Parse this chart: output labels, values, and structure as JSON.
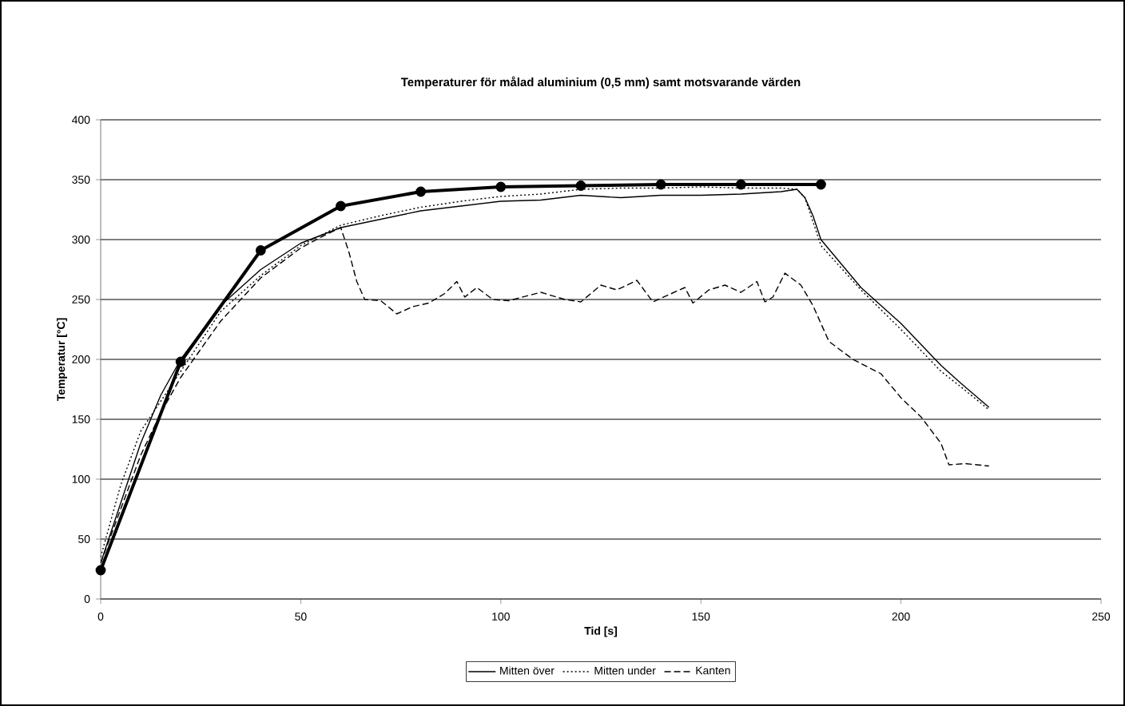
{
  "chart_data": {
    "type": "line",
    "title": "Temperaturer för målad aluminium (0,5 mm) samt motsvarande värden",
    "xlabel": "Tid [s]",
    "ylabel": "Temperatur [°C]",
    "xlim": [
      0,
      250
    ],
    "xticks": [
      0,
      50,
      100,
      150,
      200,
      250
    ],
    "ylim": [
      0,
      400
    ],
    "yticks": [
      0,
      50,
      100,
      150,
      200,
      250,
      300,
      350,
      400
    ],
    "grid": "y",
    "legend": "bottom",
    "series": [
      {
        "name": "Mitten över",
        "color": "#000000",
        "line_style": "solid",
        "marker": "none",
        "x": [
          0,
          5,
          10,
          15,
          20,
          30,
          40,
          50,
          60,
          70,
          80,
          90,
          100,
          110,
          120,
          130,
          140,
          150,
          160,
          170,
          174,
          176,
          178,
          180,
          190,
          200,
          210,
          215,
          222
        ],
        "values": [
          30,
          80,
          130,
          170,
          200,
          245,
          275,
          297,
          310,
          317,
          324,
          328,
          332,
          333,
          337,
          335,
          337,
          337,
          338,
          340,
          342,
          335,
          320,
          300,
          260,
          230,
          195,
          180,
          160
        ]
      },
      {
        "name": "Mitten under",
        "color": "#000000",
        "line_style": "dotted",
        "marker": "none",
        "x": [
          0,
          5,
          10,
          20,
          30,
          40,
          50,
          60,
          70,
          80,
          90,
          100,
          110,
          120,
          130,
          140,
          150,
          160,
          170,
          174,
          176,
          178,
          180,
          190,
          200,
          210,
          215,
          222
        ],
        "values": [
          35,
          95,
          140,
          190,
          240,
          270,
          295,
          312,
          320,
          327,
          332,
          336,
          338,
          342,
          343,
          343,
          344,
          343,
          343,
          342,
          335,
          315,
          295,
          258,
          225,
          190,
          177,
          158
        ]
      },
      {
        "name": "Kanten",
        "color": "#000000",
        "line_style": "dashed",
        "marker": "none",
        "x": [
          0,
          5,
          10,
          15,
          20,
          30,
          40,
          50,
          55,
          60,
          62,
          64,
          66,
          70,
          74,
          78,
          82,
          86,
          89,
          91,
          94,
          98,
          102,
          110,
          116,
          120,
          125,
          129,
          134,
          138,
          142,
          146,
          148,
          152,
          156,
          160,
          164,
          166,
          168,
          171,
          175,
          178,
          182,
          188,
          195,
          200,
          205,
          210,
          212,
          216,
          222
        ],
        "values": [
          30,
          75,
          120,
          155,
          185,
          232,
          268,
          293,
          302,
          310,
          290,
          265,
          250,
          249,
          238,
          244,
          247,
          255,
          265,
          252,
          260,
          250,
          249,
          256,
          250,
          248,
          262,
          258,
          266,
          248,
          254,
          260,
          247,
          258,
          262,
          256,
          265,
          248,
          252,
          272,
          262,
          245,
          215,
          200,
          188,
          168,
          152,
          130,
          112,
          113,
          111
        ]
      },
      {
        "color": "#000000",
        "line_style": "solid",
        "marker": "circle",
        "x": [
          0,
          20,
          40,
          60,
          80,
          100,
          120,
          140,
          160,
          180
        ],
        "values": [
          24,
          198,
          291,
          328,
          340,
          344,
          345,
          346,
          346,
          346
        ]
      }
    ]
  }
}
